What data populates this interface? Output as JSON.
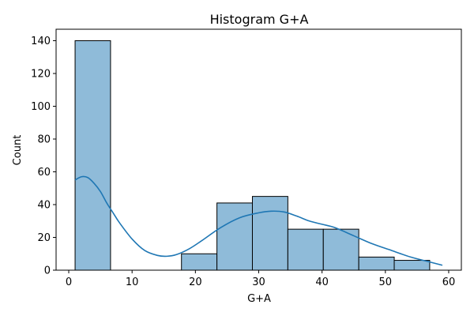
{
  "chart_data": {
    "type": "bar",
    "title": "Histogram G+A",
    "xlabel": "G+A",
    "ylabel": "Count",
    "xlim": [
      -2,
      62
    ],
    "ylim": [
      0,
      147
    ],
    "xticks": [
      0,
      10,
      20,
      30,
      40,
      50,
      60
    ],
    "yticks": [
      0,
      20,
      40,
      60,
      80,
      100,
      120,
      140
    ],
    "grid": false,
    "legend": "none",
    "bins": [
      {
        "x0": 1,
        "x1": 6.6,
        "count": 140
      },
      {
        "x0": 6.6,
        "x1": 12.2,
        "count": 0
      },
      {
        "x0": 12.2,
        "x1": 17.8,
        "count": 0
      },
      {
        "x0": 17.8,
        "x1": 23.4,
        "count": 10
      },
      {
        "x0": 23.4,
        "x1": 29.0,
        "count": 41
      },
      {
        "x0": 29.0,
        "x1": 34.6,
        "count": 45
      },
      {
        "x0": 34.6,
        "x1": 40.2,
        "count": 25
      },
      {
        "x0": 40.2,
        "x1": 45.8,
        "count": 25
      },
      {
        "x0": 45.8,
        "x1": 51.4,
        "count": 8
      },
      {
        "x0": 51.4,
        "x1": 57.0,
        "count": 6
      }
    ],
    "kde": {
      "x": [
        1,
        2,
        3,
        4,
        5,
        6,
        7,
        8,
        10,
        12,
        14,
        15.5,
        17,
        19,
        21,
        24,
        27,
        30,
        32,
        34,
        36,
        38,
        40,
        42,
        45,
        48,
        51,
        54,
        57,
        59
      ],
      "y": [
        55,
        57,
        56.5,
        53,
        48,
        41,
        35,
        29,
        19,
        12,
        9,
        8.5,
        9.5,
        13,
        18,
        26,
        32,
        35,
        36,
        35.5,
        33,
        30,
        28,
        26,
        21,
        16,
        12,
        8,
        5,
        3
      ]
    },
    "colors": {
      "bar_fill": "#8fbbd9",
      "bar_edge": "#000000",
      "kde_line": "#1f77b4"
    }
  }
}
